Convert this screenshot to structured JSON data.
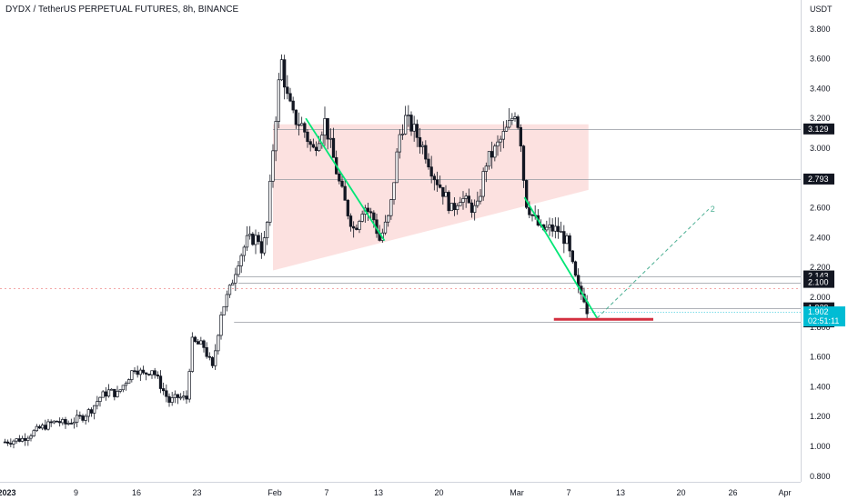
{
  "chart_data": {
    "type": "candlestick",
    "title": "DYDX / TetherUS PERPETUAL FUTURES, 8h, BINANCE",
    "y_unit": "USDT",
    "ylim": [
      0.74,
      4.0
    ],
    "y_ticks": [
      "0.800",
      "1.000",
      "1.200",
      "1.400",
      "1.600",
      "1.800",
      "2.000",
      "2.200",
      "2.400",
      "2.600",
      "2.800",
      "3.000",
      "3.200",
      "3.400",
      "3.600",
      "3.800"
    ],
    "x_ticks": [
      {
        "label": "2023",
        "day": 0,
        "bold": true
      },
      {
        "label": "9",
        "day": 8
      },
      {
        "label": "16",
        "day": 15
      },
      {
        "label": "23",
        "day": 22
      },
      {
        "label": "Feb",
        "day": 31
      },
      {
        "label": "7",
        "day": 37
      },
      {
        "label": "13",
        "day": 43
      },
      {
        "label": "20",
        "day": 50
      },
      {
        "label": "Mar",
        "day": 59
      },
      {
        "label": "7",
        "day": 65
      },
      {
        "label": "13",
        "day": 71
      },
      {
        "label": "20",
        "day": 78
      },
      {
        "label": "26",
        "day": 84
      },
      {
        "label": "Apr",
        "day": 90
      }
    ],
    "candles_path": [
      [
        0,
        1.03
      ],
      [
        2,
        1.05
      ],
      [
        4,
        1.12
      ],
      [
        6,
        1.17
      ],
      [
        7,
        1.15
      ],
      [
        9,
        1.2
      ],
      [
        10,
        1.25
      ],
      [
        11,
        1.33
      ],
      [
        12,
        1.37
      ],
      [
        13,
        1.35
      ],
      [
        15,
        1.53
      ],
      [
        16,
        1.48
      ],
      [
        17,
        1.52
      ],
      [
        19,
        1.3
      ],
      [
        20,
        1.33
      ],
      [
        21,
        1.32
      ],
      [
        21.6,
        1.7
      ],
      [
        23,
        1.67
      ],
      [
        24,
        1.52
      ],
      [
        25,
        1.9
      ],
      [
        26,
        2.05
      ],
      [
        27,
        2.25
      ],
      [
        28,
        2.38
      ],
      [
        29.3,
        2.4
      ],
      [
        29.8,
        2.3
      ],
      [
        30.4,
        2.52
      ],
      [
        31,
        3.0
      ],
      [
        31.6,
        3.4
      ],
      [
        32,
        3.58
      ],
      [
        32.6,
        3.35
      ],
      [
        33.4,
        3.2
      ],
      [
        34.4,
        3.15
      ],
      [
        35.6,
        2.98
      ],
      [
        37,
        3.18
      ],
      [
        38.6,
        2.78
      ],
      [
        39.6,
        2.58
      ],
      [
        40.4,
        2.45
      ],
      [
        41.5,
        2.62
      ],
      [
        42.7,
        2.52
      ],
      [
        43.3,
        2.38
      ],
      [
        44.5,
        2.55
      ],
      [
        45.6,
        3.08
      ],
      [
        46.3,
        3.2
      ],
      [
        47.3,
        3.12
      ],
      [
        48.6,
        2.98
      ],
      [
        49.6,
        2.82
      ],
      [
        50.6,
        2.72
      ],
      [
        51.7,
        2.58
      ],
      [
        52.6,
        2.68
      ],
      [
        53.6,
        2.62
      ],
      [
        54.6,
        2.58
      ],
      [
        55.6,
        2.9
      ],
      [
        56.6,
        2.98
      ],
      [
        57.3,
        3.05
      ],
      [
        58.3,
        3.15
      ],
      [
        59,
        3.25
      ],
      [
        59.6,
        3.1
      ],
      [
        60.2,
        2.65
      ],
      [
        61,
        2.55
      ],
      [
        62,
        2.45
      ],
      [
        63,
        2.46
      ],
      [
        64,
        2.45
      ],
      [
        65,
        2.37
      ],
      [
        65.6,
        2.22
      ],
      [
        66.3,
        2.05
      ],
      [
        67,
        2.0
      ],
      [
        67.4,
        1.9
      ]
    ],
    "price_levels": [
      {
        "label": "3.129",
        "value": 3.129
      },
      {
        "label": "2.793",
        "value": 2.793
      },
      {
        "label": "2.143",
        "value": 2.143
      },
      {
        "label": "2.100",
        "value": 2.1
      },
      {
        "label": "1.929",
        "value": 1.929
      },
      {
        "label": "1.835",
        "value": 1.835
      }
    ],
    "last_price": {
      "label": "1.902",
      "countdown": "02:51:11",
      "value": 1.902,
      "color": "#00bcd4"
    },
    "dotted_line_value": 2.06,
    "pattern_zone": {
      "top": 3.16,
      "bottom_left": 2.18,
      "bottom_right": 2.72,
      "start_day": 31,
      "end_day": 67.5,
      "color": "#f7b3b1"
    },
    "trend_lines": [
      {
        "from": [
          34.8,
          3.2
        ],
        "to": [
          43.9,
          2.38
        ],
        "color": "#00e676"
      },
      {
        "from": [
          60.1,
          2.67
        ],
        "to": [
          68.5,
          1.86
        ],
        "color": "#00e676"
      }
    ],
    "projection": {
      "from": [
        68.5,
        1.86
      ],
      "to": [
        81.4,
        2.59
      ],
      "label": "2",
      "color": "#4caf93"
    },
    "support_marker": {
      "from_day": 63.5,
      "to_day": 75,
      "value": 1.852,
      "color": "#d32f3f"
    },
    "colors": {
      "up": "#ffffff",
      "down": "#131722",
      "level_line": "#9598a1",
      "tag_bg": "#131722"
    }
  }
}
